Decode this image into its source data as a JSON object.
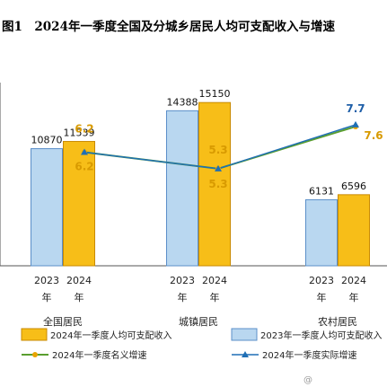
{
  "figure": {
    "title": "图1　2024年一季度全国及分城乡居民人均可支配收入与增速",
    "watermark": "@",
    "colors": {
      "bar_2023": "#b9d7f0",
      "bar_2023_edge": "#5b8fc9",
      "bar_2024": "#f7be18",
      "bar_2024_edge": "#c98a00",
      "nominal_line": "#5a9e2f",
      "nominal_marker": "#e8a400",
      "nominal_label": "#d89a00",
      "real_line": "#1f6fb5",
      "real_label": "#1f5fa8",
      "axis": "#555555"
    }
  },
  "chart_data": {
    "type": "bar",
    "title": "2024年一季度全国及分城乡居民人均可支配收入与增速",
    "categories": [
      "全国居民",
      "城镇居民",
      "农村居民"
    ],
    "year_labels": [
      "2023\n年",
      "2024\n年"
    ],
    "series": [
      {
        "name": "2023年一季度人均可支配收入",
        "type": "bar",
        "values": [
          10870,
          14388,
          6131
        ]
      },
      {
        "name": "2024年一季度人均可支配收入",
        "type": "bar",
        "values": [
          11539,
          15150,
          6596
        ]
      },
      {
        "name": "2024年一季度名义增速",
        "type": "line",
        "values": [
          6.2,
          5.3,
          7.6
        ]
      },
      {
        "name": "2024年一季度实际增速",
        "type": "line",
        "values": [
          6.2,
          5.3,
          7.7
        ]
      }
    ],
    "income_ylim": [
      0,
      17000
    ],
    "rate_ylim": [
      0,
      10
    ],
    "legend_position": "bottom",
    "grid": false
  }
}
